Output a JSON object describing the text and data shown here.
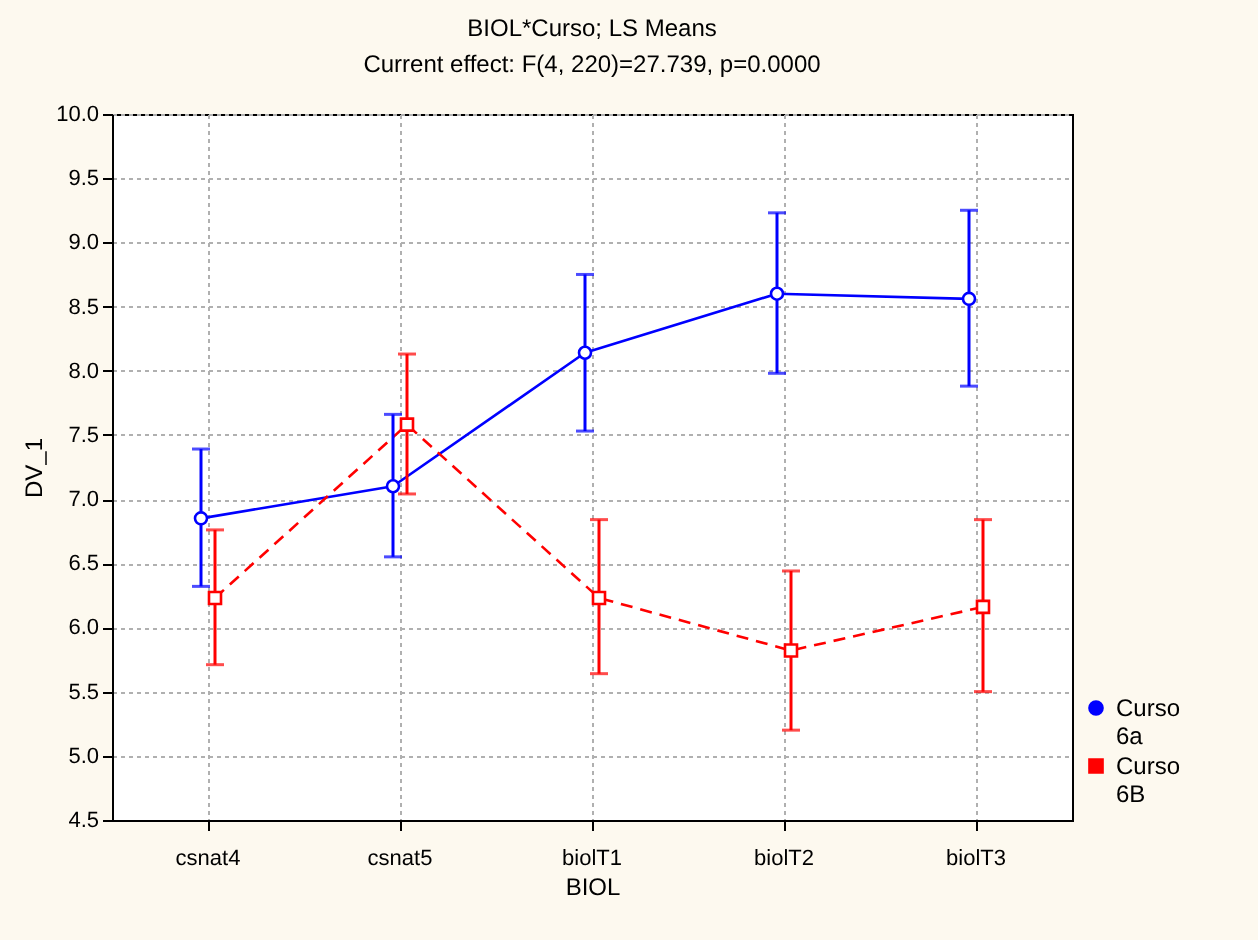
{
  "chart_data": {
    "type": "line",
    "title": "BIOL*Curso; LS Means",
    "subtitle": "Current effect: F(4, 220)=27.739, p=0.0000",
    "xlabel": "BIOL",
    "ylabel": "DV_1",
    "categories": [
      "csnat4",
      "csnat5",
      "biolT1",
      "biolT2",
      "biolT3"
    ],
    "ylim": [
      4.5,
      10.0
    ],
    "yticks": [
      {
        "value": 4.5,
        "label": "4.5"
      },
      {
        "value": 5,
        "label": "5.0"
      },
      {
        "value": 5.5,
        "label": "5.5"
      },
      {
        "value": 6,
        "label": "6.0"
      },
      {
        "value": 6.5,
        "label": "6.5"
      },
      {
        "value": 7,
        "label": "7.0"
      },
      {
        "value": 7.5,
        "label": "7.5"
      },
      {
        "value": 8,
        "label": "8.0"
      },
      {
        "value": 8.5,
        "label": "8.5"
      },
      {
        "value": 9,
        "label": "9.0"
      },
      {
        "value": 9.5,
        "label": "9.5"
      },
      {
        "value": 10,
        "label": "10.0"
      }
    ],
    "grid": true,
    "legend": "bottom right",
    "series": [
      {
        "name": "Curso 6a",
        "color": "#0000ff",
        "marker": "circle",
        "line_style": "solid",
        "values": [
          6.85,
          7.1,
          8.14,
          8.6,
          8.56
        ],
        "errors": [
          [
            6.32,
            7.39
          ],
          [
            6.55,
            7.66
          ],
          [
            7.53,
            8.75
          ],
          [
            7.98,
            9.23
          ],
          [
            7.88,
            9.25
          ]
        ]
      },
      {
        "name": "Curso 6B",
        "color": "#ff0000",
        "marker": "square",
        "line_style": "dashed",
        "values": [
          6.23,
          7.58,
          6.23,
          5.82,
          6.16
        ],
        "errors": [
          [
            5.71,
            6.76
          ],
          [
            7.04,
            8.13
          ],
          [
            5.64,
            6.84
          ],
          [
            5.2,
            6.44
          ],
          [
            5.5,
            6.84
          ]
        ]
      }
    ]
  }
}
